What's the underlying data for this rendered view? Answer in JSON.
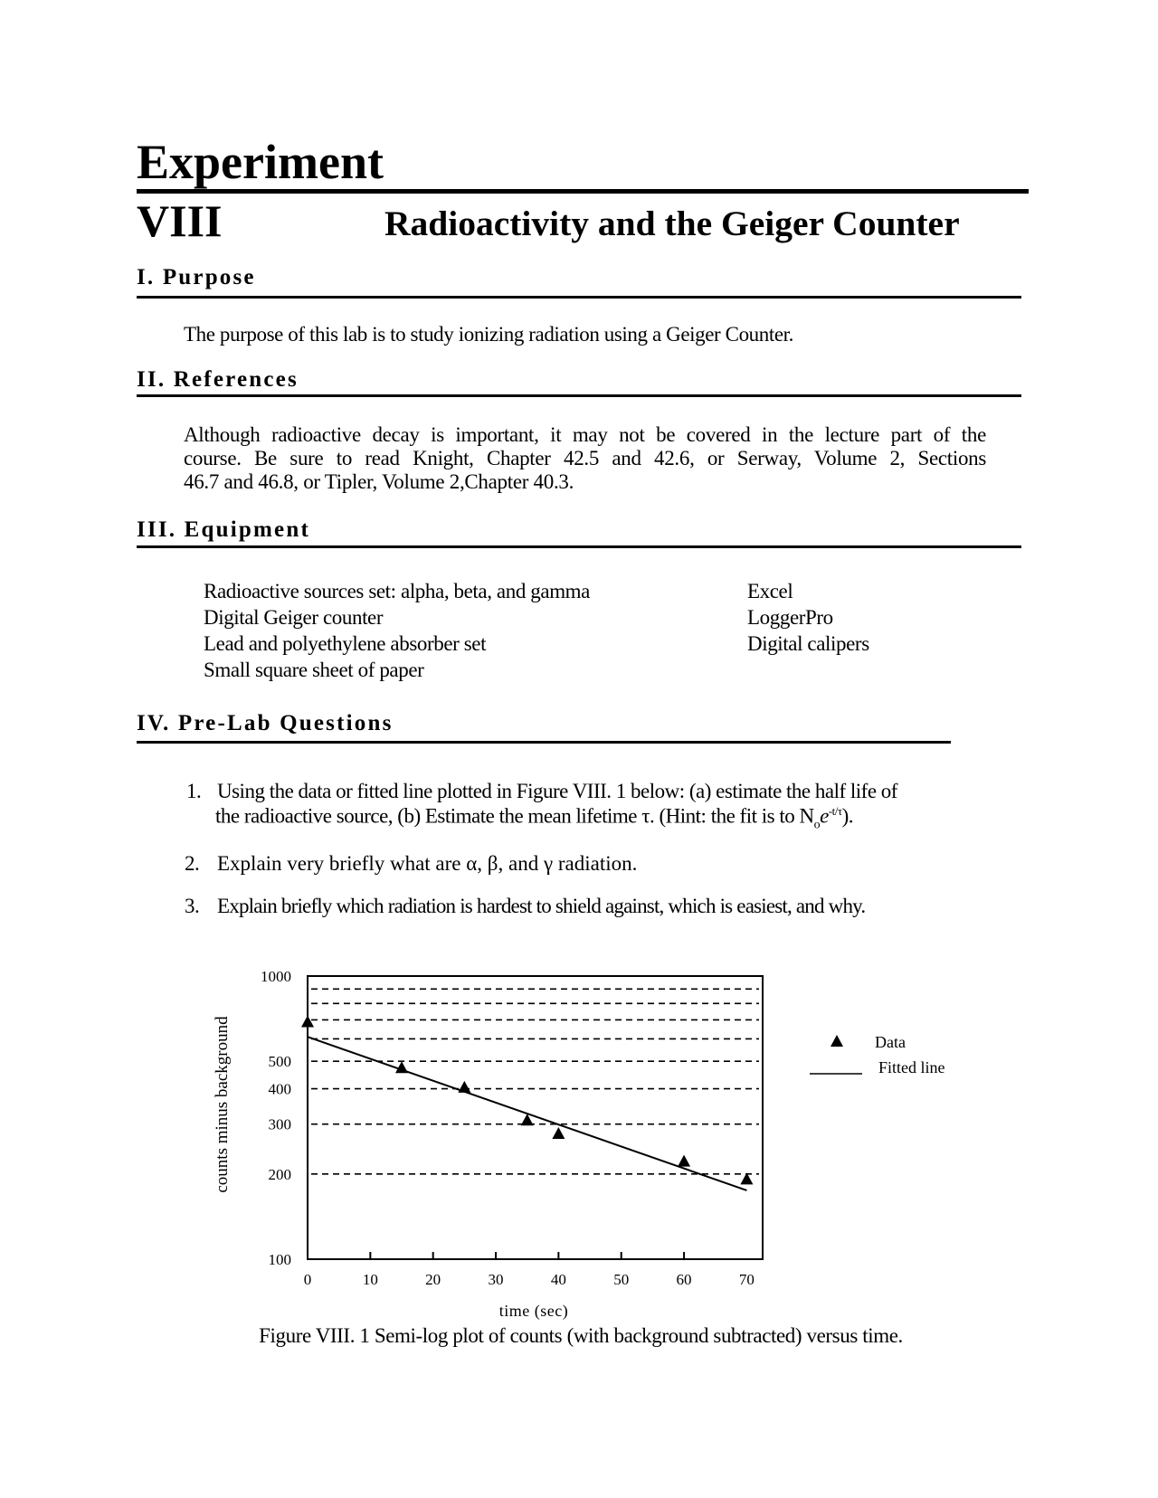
{
  "header": {
    "experiment_label": "Experiment",
    "number": "VIII",
    "title": "Radioactivity and the Geiger Counter"
  },
  "purpose": {
    "heading": "I. Purpose",
    "text": "The purpose of this lab is to study ionizing radiation using a Geiger Counter."
  },
  "references": {
    "heading": "II. References",
    "lines": [
      "Although radioactive decay is important, it may not be covered in the lecture part of the",
      "course. Be sure to read Knight, Chapter 42.5 and 42.6, or Serway, Volume 2, Sections",
      "46.7 and 46.8, or Tipler, Volume 2,Chapter 40.3."
    ]
  },
  "equipment": {
    "heading": "III. Equipment",
    "column1": [
      "Radioactive sources set: alpha, beta, and gamma",
      "Digital Geiger counter",
      "Lead and polyethylene absorber set",
      "Small square sheet of paper"
    ],
    "column2": [
      "Excel",
      "LoggerPro",
      "Digital calipers"
    ]
  },
  "prelab": {
    "heading": "IV. Pre-Lab Questions",
    "questions": [
      {
        "number": "1.",
        "line1": "Using the data or fitted line plotted in Figure VIII. 1 below: (a) estimate the half life of",
        "line2": "the radioactive source, (b) Estimate the mean lifetime  τ. (Hint: the fit is to N",
        "formula_sub": "o",
        "formula_e": "e",
        "formula_sup": "-t/τ",
        "formula_end": ")."
      },
      {
        "number": "2.",
        "line1": "Explain very briefly what are α, β, and γ radiation."
      },
      {
        "number": "3.",
        "line1": "Explain briefly which radiation is hardest to shield against, which is easiest, and why."
      }
    ]
  },
  "figure": {
    "caption": "Figure VIII. 1 Semi-log plot of counts (with background subtracted) versus time."
  },
  "chart_data": {
    "type": "scatter",
    "title": "",
    "xlabel": "time (sec)",
    "ylabel": "counts minus background",
    "xlim": [
      0,
      70
    ],
    "ylim": [
      100,
      1000
    ],
    "yscale": "log",
    "x_ticks": [
      "0",
      "10",
      "20",
      "30",
      "40",
      "50",
      "60",
      "70"
    ],
    "y_tick_labels": [
      "1000",
      "500",
      "400",
      "300",
      "200",
      "100"
    ],
    "y_tick_values": [
      1000,
      500,
      400,
      300,
      200,
      100
    ],
    "gridlines_y": [
      900,
      800,
      700,
      600,
      500,
      400,
      300,
      200
    ],
    "grid": "horizontal dashed",
    "legend_position": "right",
    "series": [
      {
        "name": "Data",
        "marker": "triangle",
        "x": [
          0,
          15,
          25,
          35,
          40,
          60,
          70
        ],
        "y": [
          690,
          475,
          405,
          310,
          278,
          222,
          192
        ]
      },
      {
        "name": "Fitted line",
        "kind": "line",
        "x": [
          0,
          70
        ],
        "y": [
          610,
          175
        ]
      }
    ]
  }
}
